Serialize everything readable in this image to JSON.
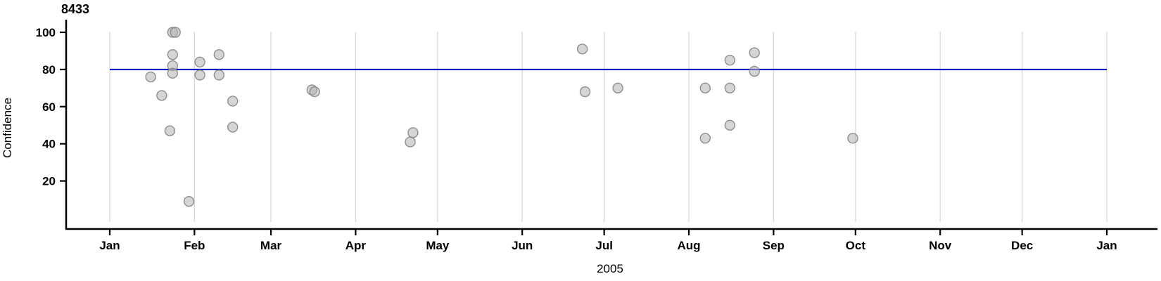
{
  "colors": {
    "background": "#ffffff",
    "reference_line": "#0000cc",
    "gridline": "#d8d8d8",
    "point_fill": "#b3b3b3",
    "point_stroke": "#858585",
    "axis": "#000000",
    "text": "#000000"
  },
  "chart_data": {
    "type": "scatter",
    "title": "8433",
    "xlabel": "2005",
    "ylabel": "Confidence",
    "legend": "none",
    "grid": "vertical-monthly",
    "ylim": [
      -6,
      107
    ],
    "y_ticks": [
      100,
      80,
      60,
      40,
      20
    ],
    "x_ticks": [
      {
        "label": "Jan",
        "day": 1
      },
      {
        "label": "Feb",
        "day": 32
      },
      {
        "label": "Mar",
        "day": 60
      },
      {
        "label": "Apr",
        "day": 91
      },
      {
        "label": "May",
        "day": 121
      },
      {
        "label": "Jun",
        "day": 152
      },
      {
        "label": "Jul",
        "day": 182
      },
      {
        "label": "Aug",
        "day": 213
      },
      {
        "label": "Sep",
        "day": 244
      },
      {
        "label": "Oct",
        "day": 274
      },
      {
        "label": "Nov",
        "day": 305
      },
      {
        "label": "Dec",
        "day": 335
      },
      {
        "label": "Jan",
        "day": 366
      }
    ],
    "reference_line": {
      "y": 80
    },
    "points": [
      {
        "date": "2005-01-16",
        "day": 16,
        "confidence": 76
      },
      {
        "date": "2005-01-20",
        "day": 20,
        "confidence": 66
      },
      {
        "date": "2005-01-23",
        "day": 23,
        "confidence": 47
      },
      {
        "date": "2005-01-24",
        "day": 24,
        "confidence": 100
      },
      {
        "date": "2005-01-25",
        "day": 25,
        "confidence": 100
      },
      {
        "date": "2005-01-24",
        "day": 24,
        "confidence": 88
      },
      {
        "date": "2005-01-24",
        "day": 24,
        "confidence": 82
      },
      {
        "date": "2005-01-24",
        "day": 24,
        "confidence": 78
      },
      {
        "date": "2005-01-30",
        "day": 30,
        "confidence": 9
      },
      {
        "date": "2005-02-03",
        "day": 34,
        "confidence": 84
      },
      {
        "date": "2005-02-03",
        "day": 34,
        "confidence": 77
      },
      {
        "date": "2005-02-10",
        "day": 41,
        "confidence": 88
      },
      {
        "date": "2005-02-10",
        "day": 41,
        "confidence": 77
      },
      {
        "date": "2005-02-15",
        "day": 46,
        "confidence": 63
      },
      {
        "date": "2005-02-15",
        "day": 46,
        "confidence": 49
      },
      {
        "date": "2005-03-16",
        "day": 75,
        "confidence": 69
      },
      {
        "date": "2005-03-17",
        "day": 76,
        "confidence": 68
      },
      {
        "date": "2005-04-21",
        "day": 111,
        "confidence": 41
      },
      {
        "date": "2005-04-22",
        "day": 112,
        "confidence": 46
      },
      {
        "date": "2005-06-23",
        "day": 174,
        "confidence": 91
      },
      {
        "date": "2005-06-24",
        "day": 175,
        "confidence": 68
      },
      {
        "date": "2005-07-06",
        "day": 187,
        "confidence": 70
      },
      {
        "date": "2005-08-07",
        "day": 219,
        "confidence": 70
      },
      {
        "date": "2005-08-07",
        "day": 219,
        "confidence": 43
      },
      {
        "date": "2005-08-16",
        "day": 228,
        "confidence": 85
      },
      {
        "date": "2005-08-16",
        "day": 228,
        "confidence": 70
      },
      {
        "date": "2005-08-16",
        "day": 228,
        "confidence": 50
      },
      {
        "date": "2005-08-25",
        "day": 237,
        "confidence": 89
      },
      {
        "date": "2005-08-25",
        "day": 237,
        "confidence": 79
      },
      {
        "date": "2005-09-30",
        "day": 273,
        "confidence": 43
      }
    ]
  }
}
